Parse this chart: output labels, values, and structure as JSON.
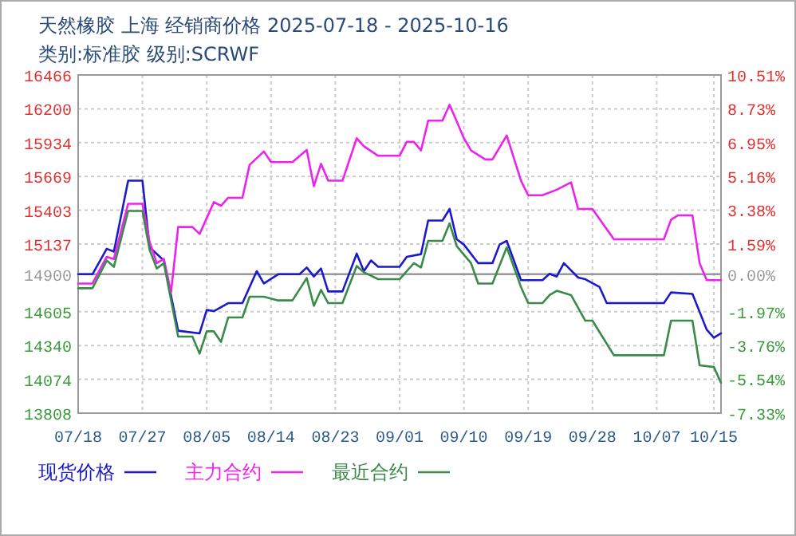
{
  "chart_data": {
    "type": "line",
    "title": "天然橡胶 上海 经销商价格 2025-07-18 - 2025-10-16",
    "subtitle": "类别:标准胶 级别:SCRWF",
    "xlim": [
      "2025-07-18",
      "2025-10-16"
    ],
    "xticks": [
      {
        "value": "2025-07-18",
        "label": "07/18"
      },
      {
        "value": "2025-07-27",
        "label": "07/27"
      },
      {
        "value": "2025-08-05",
        "label": "08/05"
      },
      {
        "value": "2025-08-14",
        "label": "08/14"
      },
      {
        "value": "2025-08-23",
        "label": "08/23"
      },
      {
        "value": "2025-09-01",
        "label": "09/01"
      },
      {
        "value": "2025-09-10",
        "label": "09/10"
      },
      {
        "value": "2025-09-19",
        "label": "09/19"
      },
      {
        "value": "2025-09-28",
        "label": "09/28"
      },
      {
        "value": "2025-10-07",
        "label": "10/07"
      },
      {
        "value": "2025-10-15",
        "label": "10/15"
      }
    ],
    "ylim": [
      13808,
      16466
    ],
    "yticks": [
      13808,
      14074,
      14340,
      14605,
      14900,
      15137,
      15403,
      15669,
      15934,
      16200,
      16466
    ],
    "y2lim": [
      -7.33,
      10.51
    ],
    "y2ticks": [
      {
        "value": -7.33,
        "label": "-7.33%"
      },
      {
        "value": -5.54,
        "label": "-5.54%"
      },
      {
        "value": -3.76,
        "label": "-3.76%"
      },
      {
        "value": -1.97,
        "label": "-1.97%"
      },
      {
        "value": 0,
        "label": "0.00%"
      },
      {
        "value": 1.59,
        "label": "1.59%"
      },
      {
        "value": 3.38,
        "label": "3.38%"
      },
      {
        "value": 5.16,
        "label": "5.16%"
      },
      {
        "value": 6.95,
        "label": "6.95%"
      },
      {
        "value": 8.73,
        "label": "8.73%"
      },
      {
        "value": 10.51,
        "label": "10.51%"
      }
    ],
    "grid": true,
    "legend": "bottom",
    "ref_lines": [
      {
        "axis": "y",
        "value": 14900,
        "label": null,
        "color": "#999999"
      }
    ],
    "series": [
      {
        "name": "现货价格",
        "color": "#1a1acc",
        "x": [
          "2025-07-18",
          "2025-07-20",
          "2025-07-22",
          "2025-07-23",
          "2025-07-25",
          "2025-07-27",
          "2025-07-28",
          "2025-07-30",
          "2025-08-01",
          "2025-08-04",
          "2025-08-05",
          "2025-08-06",
          "2025-08-08",
          "2025-08-10",
          "2025-08-12",
          "2025-08-13",
          "2025-08-15",
          "2025-08-18",
          "2025-08-19",
          "2025-08-20",
          "2025-08-21",
          "2025-08-22",
          "2025-08-24",
          "2025-08-26",
          "2025-08-27",
          "2025-08-28",
          "2025-08-29",
          "2025-09-01",
          "2025-09-02",
          "2025-09-04",
          "2025-09-05",
          "2025-09-07",
          "2025-09-08",
          "2025-09-09",
          "2025-09-10",
          "2025-09-12",
          "2025-09-14",
          "2025-09-15",
          "2025-09-16",
          "2025-09-18",
          "2025-09-21",
          "2025-09-22",
          "2025-09-23",
          "2025-09-24",
          "2025-09-26",
          "2025-09-27",
          "2025-09-29",
          "2025-09-30",
          "2025-10-08",
          "2025-10-09",
          "2025-10-12",
          "2025-10-14",
          "2025-10-15",
          "2025-10-16"
        ],
        "values": [
          14900,
          14900,
          15100,
          15078,
          15635,
          15635,
          15112,
          15008,
          14456,
          14435,
          14619,
          14610,
          14673,
          14673,
          14924,
          14827,
          14900,
          14900,
          14953,
          14882,
          14945,
          14765,
          14765,
          15062,
          14924,
          15008,
          14958,
          14958,
          15037,
          15058,
          15322,
          15322,
          15413,
          15175,
          15133,
          14987,
          14987,
          15133,
          15162,
          14853,
          14853,
          14903,
          14882,
          14987,
          14874,
          14861,
          14799,
          14673,
          14673,
          14757,
          14745,
          14464,
          14401,
          14435
        ]
      },
      {
        "name": "主力合约",
        "color": "#ee22ee",
        "x": [
          "2025-07-18",
          "2025-07-20",
          "2025-07-22",
          "2025-07-23",
          "2025-07-25",
          "2025-07-27",
          "2025-07-28",
          "2025-07-29",
          "2025-07-30",
          "2025-07-31",
          "2025-08-01",
          "2025-08-03",
          "2025-08-04",
          "2025-08-06",
          "2025-08-07",
          "2025-08-08",
          "2025-08-10",
          "2025-08-11",
          "2025-08-13",
          "2025-08-14",
          "2025-08-17",
          "2025-08-19",
          "2025-08-20",
          "2025-08-21",
          "2025-08-22",
          "2025-08-24",
          "2025-08-26",
          "2025-08-27",
          "2025-08-29",
          "2025-09-01",
          "2025-09-02",
          "2025-09-03",
          "2025-09-04",
          "2025-09-05",
          "2025-09-07",
          "2025-09-08",
          "2025-09-10",
          "2025-09-11",
          "2025-09-13",
          "2025-09-14",
          "2025-09-16",
          "2025-09-18",
          "2025-09-19",
          "2025-09-21",
          "2025-09-23",
          "2025-09-25",
          "2025-09-26",
          "2025-09-28",
          "2025-10-01",
          "2025-10-08",
          "2025-10-09",
          "2025-10-10",
          "2025-10-12",
          "2025-10-13",
          "2025-10-14",
          "2025-10-16"
        ],
        "values": [
          14827,
          14827,
          15037,
          15020,
          15454,
          15454,
          15154,
          14987,
          15020,
          14757,
          15271,
          15271,
          15216,
          15467,
          15438,
          15501,
          15501,
          15760,
          15865,
          15781,
          15781,
          15877,
          15592,
          15768,
          15635,
          15635,
          15969,
          15906,
          15831,
          15831,
          15940,
          15940,
          15873,
          16107,
          16107,
          16232,
          15969,
          15873,
          15802,
          15802,
          15990,
          15635,
          15521,
          15521,
          15564,
          15622,
          15413,
          15413,
          15175,
          15175,
          15329,
          15363,
          15363,
          14987,
          14853,
          14853
        ]
      },
      {
        "name": "最近合约",
        "color": "#3a8a4a",
        "x": [
          "2025-07-18",
          "2025-07-20",
          "2025-07-22",
          "2025-07-23",
          "2025-07-25",
          "2025-07-27",
          "2025-07-28",
          "2025-07-29",
          "2025-07-30",
          "2025-08-01",
          "2025-08-03",
          "2025-08-04",
          "2025-08-05",
          "2025-08-06",
          "2025-08-07",
          "2025-08-08",
          "2025-08-10",
          "2025-08-11",
          "2025-08-13",
          "2025-08-15",
          "2025-08-17",
          "2025-08-19",
          "2025-08-20",
          "2025-08-21",
          "2025-08-22",
          "2025-08-24",
          "2025-08-26",
          "2025-08-27",
          "2025-08-29",
          "2025-09-01",
          "2025-09-03",
          "2025-09-04",
          "2025-09-05",
          "2025-09-07",
          "2025-09-08",
          "2025-09-09",
          "2025-09-11",
          "2025-09-12",
          "2025-09-14",
          "2025-09-16",
          "2025-09-18",
          "2025-09-19",
          "2025-09-21",
          "2025-09-22",
          "2025-09-23",
          "2025-09-25",
          "2025-09-27",
          "2025-09-28",
          "2025-10-01",
          "2025-10-08",
          "2025-10-09",
          "2025-10-12",
          "2025-10-13",
          "2025-10-15",
          "2025-10-16"
        ],
        "values": [
          14790,
          14790,
          15008,
          14958,
          15397,
          15397,
          15091,
          14945,
          14987,
          14410,
          14410,
          14276,
          14451,
          14451,
          14368,
          14560,
          14560,
          14723,
          14723,
          14694,
          14694,
          14870,
          14652,
          14777,
          14673,
          14673,
          14965,
          14915,
          14861,
          14861,
          14987,
          14953,
          15162,
          15162,
          15300,
          15121,
          14987,
          14827,
          14827,
          15112,
          14799,
          14673,
          14673,
          14736,
          14770,
          14736,
          14535,
          14535,
          14263,
          14263,
          14535,
          14535,
          14184,
          14171,
          14046
        ]
      }
    ]
  }
}
